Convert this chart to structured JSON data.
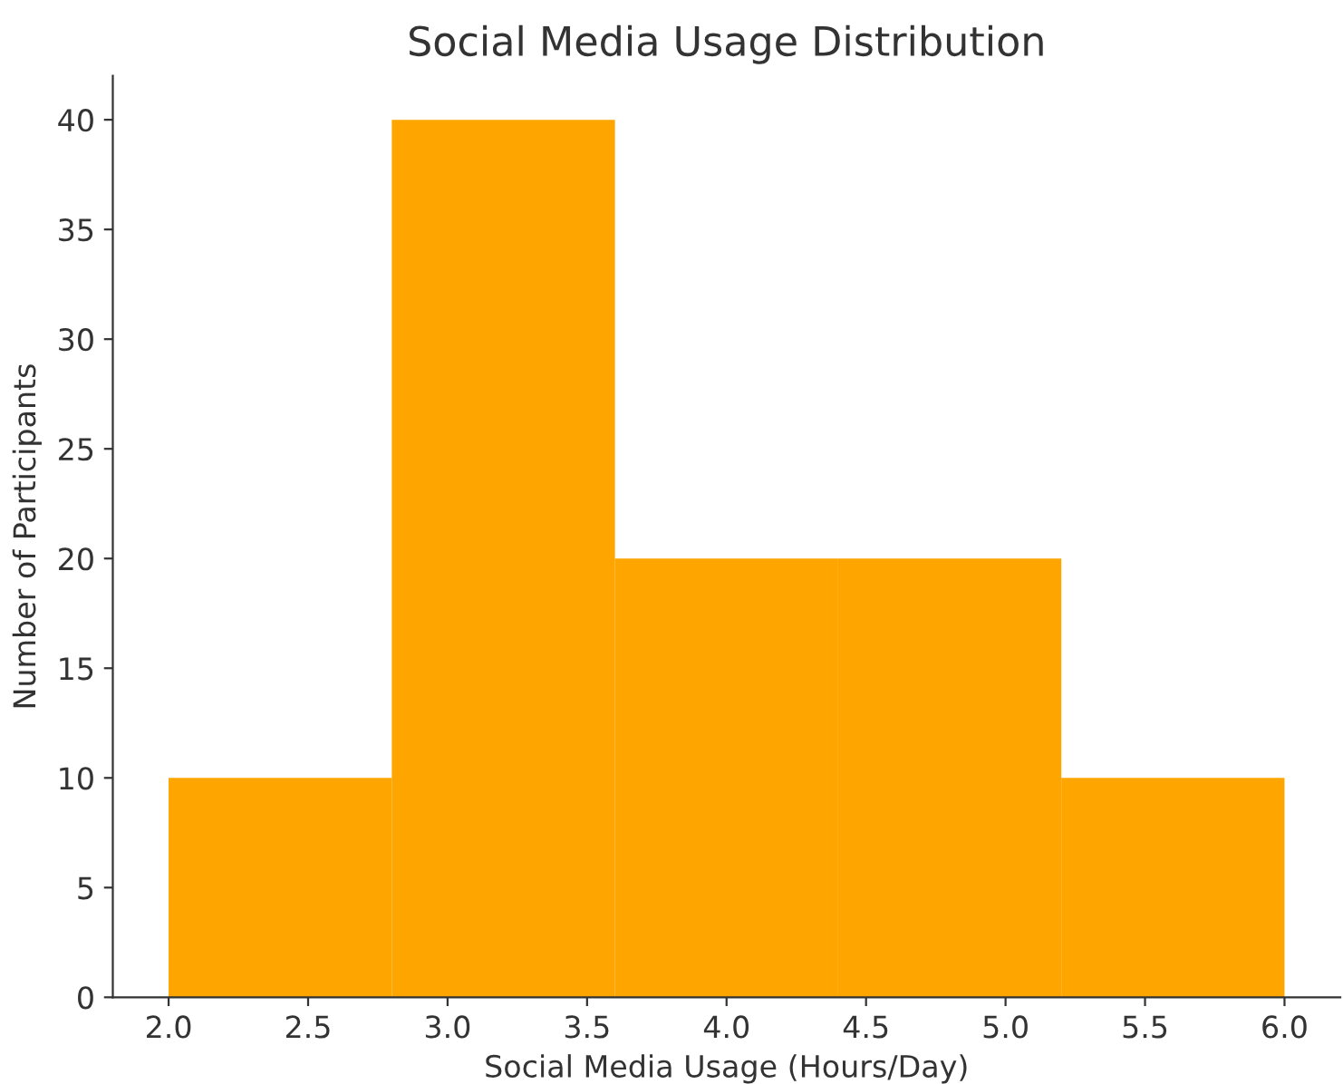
{
  "chart_data": {
    "type": "histogram",
    "title": "Social Media Usage Distribution",
    "xlabel": "Social Media Usage (Hours/Day)",
    "ylabel": "Number of Participants",
    "bins": [
      2.0,
      2.8,
      3.6,
      4.4,
      5.2,
      6.0
    ],
    "values": [
      10,
      40,
      20,
      20,
      10
    ],
    "color": "#ffa500",
    "xlim": [
      1.8,
      6.2
    ],
    "xticks": [
      {
        "value": 2,
        "label": "2.0"
      },
      {
        "value": 2.5,
        "label": "2.5"
      },
      {
        "value": 3,
        "label": "3.0"
      },
      {
        "value": 3.5,
        "label": "3.5"
      },
      {
        "value": 4,
        "label": "4.0"
      },
      {
        "value": 4.5,
        "label": "4.5"
      },
      {
        "value": 5,
        "label": "5.0"
      },
      {
        "value": 5.5,
        "label": "5.5"
      },
      {
        "value": 6,
        "label": "6.0"
      }
    ],
    "ylim": [
      0,
      42
    ],
    "yticks": [
      0,
      5,
      10,
      15,
      20,
      25,
      30,
      35,
      40
    ],
    "grid": false
  }
}
